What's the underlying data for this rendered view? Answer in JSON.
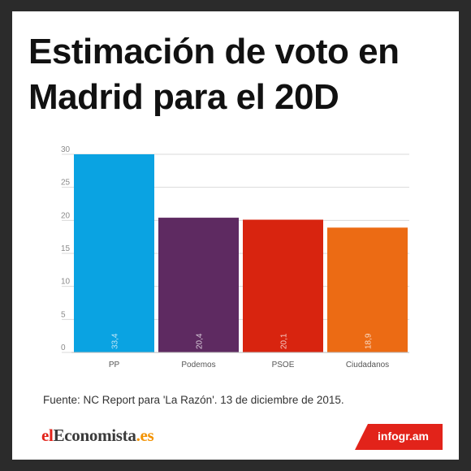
{
  "title_line1": "Estimación de voto en",
  "title_line2": "Madrid para el 20D",
  "source": "Fuente:  NC Report para 'La Razón'.  13 de diciembre de 2015.",
  "logo": {
    "part1": "el",
    "part2": "Economista",
    "part3": ".es"
  },
  "badge": "infogr.am",
  "colors": {
    "page_bg": "#2b2b2b",
    "grid": "#d9d9d9",
    "axis_text": "#8a8a8a",
    "badge": "#e2231a"
  },
  "chart_data": {
    "type": "bar",
    "title": "Estimación de voto en Madrid para el 20D",
    "categories": [
      "PP",
      "Podemos",
      "PSOE",
      "Ciudadanos"
    ],
    "values": [
      33.4,
      20.4,
      20.1,
      18.9
    ],
    "value_labels": [
      "33,4",
      "20,4",
      "20,1",
      "18,9"
    ],
    "colors": [
      "#0aa3e2",
      "#5e2a61",
      "#d8240f",
      "#ec6b14"
    ],
    "yticks": [
      0,
      5,
      10,
      15,
      20,
      25,
      30
    ],
    "ylim": [
      0,
      30
    ],
    "grid": true,
    "legend": "none",
    "xlabel": "",
    "ylabel": ""
  }
}
